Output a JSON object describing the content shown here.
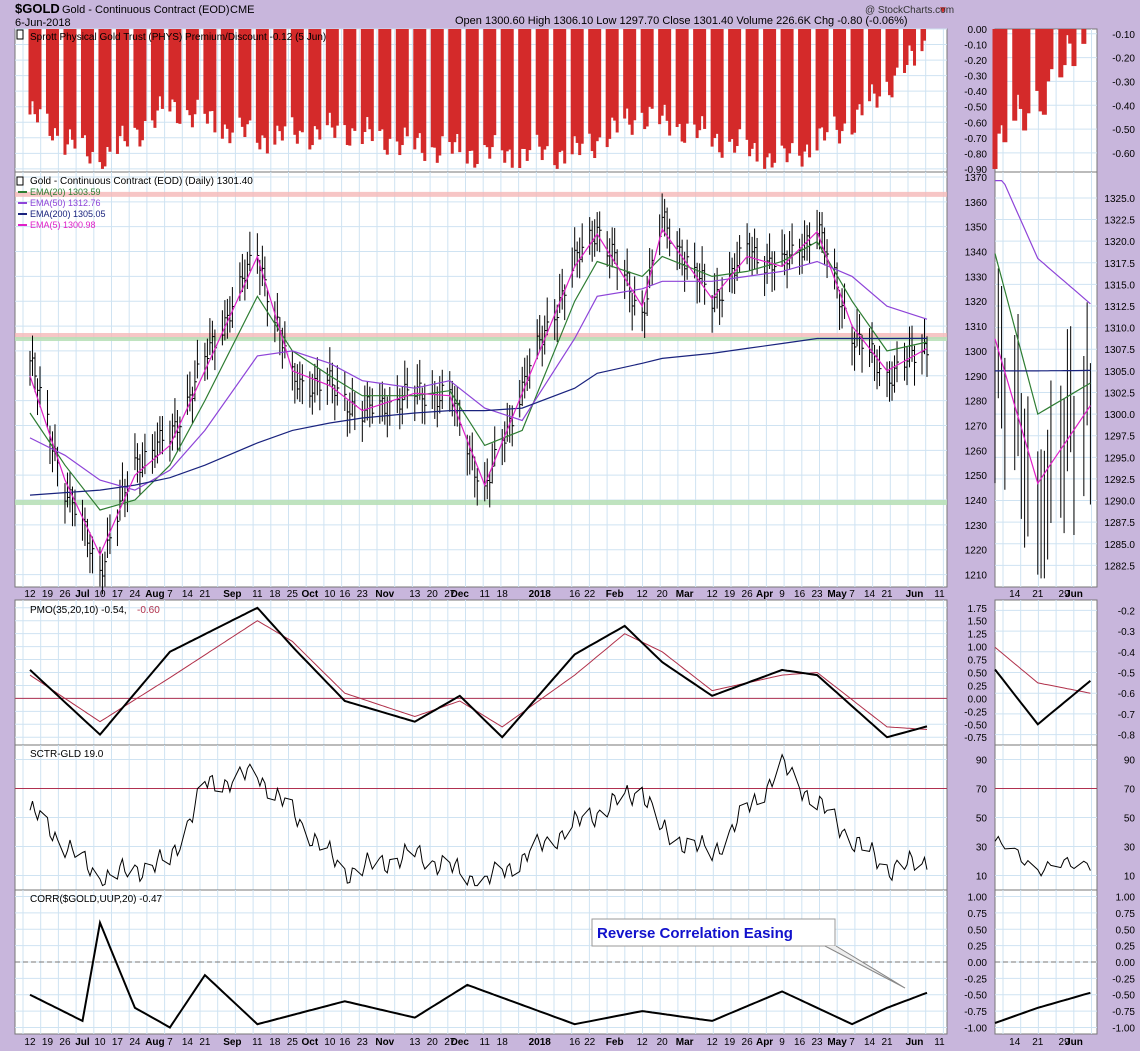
{
  "header": {
    "symbol": "$GOLD",
    "name": "Gold - Continuous Contract (EOD)",
    "exchange": "CME",
    "date": "6-Jun-2018",
    "quote": "Open 1300.60  High 1306.10  Low 1297.70  Close 1301.40  Volume 226.6K  Chg -0.80 (-0.06%)",
    "chg_arrow": "▼",
    "watermark": "@ StockCharts.com"
  },
  "colors": {
    "frame": "#c8b6dc",
    "panel_bg": "#ffffff",
    "grid": "#cfe3f2",
    "phys_bar": "#d42a2a",
    "price_bar": "#000000",
    "ema20": "#2e7d32",
    "ema50": "#8e44d8",
    "ema200": "#1a237e",
    "ema5": "#e020c8",
    "resistance_band": "#f5b8b8",
    "support_band": "#b8e0b8",
    "pmo_line": "#000000",
    "pmo_signal": "#b0304a",
    "zero_line": "#b03050",
    "sctr_line": "#000000",
    "corr_line": "#000000",
    "callout_text": "#1111cc"
  },
  "x_axis": {
    "main_labels": [
      "12",
      "19",
      "26",
      "Jul",
      "10",
      "17",
      "24",
      "Aug",
      "7",
      "14",
      "21",
      "Sep",
      "11",
      "18",
      "25",
      "Oct",
      "10",
      "16",
      "23",
      "Nov",
      "13",
      "20",
      "27",
      "Dec",
      "11",
      "18",
      "2018",
      "16",
      "22",
      "Feb",
      "12",
      "20",
      "Mar",
      "12",
      "19",
      "26",
      "Apr",
      "9",
      "16",
      "23",
      "May",
      "7",
      "14",
      "21",
      "Jun",
      "11"
    ],
    "zoom_labels": [
      "14",
      "21",
      "29",
      "Jun"
    ]
  },
  "panels": {
    "phys": {
      "legend_icon": "bar-icon",
      "label": "Sprott Physical Gold Trust (PHYS) Premium/Discount -0.12 (5 Jun)",
      "ticks": [
        "0.00",
        "-0.10",
        "-0.20",
        "-0.30",
        "-0.40",
        "-0.50",
        "-0.60",
        "-0.70",
        "-0.80",
        "-0.90"
      ],
      "zoom_ticks": [
        "-0.10",
        "-0.20",
        "-0.30",
        "-0.40",
        "-0.50",
        "-0.60"
      ]
    },
    "price": {
      "legend_icon": "ohlc-icon",
      "title": "Gold - Continuous Contract (EOD) (Daily) 1301.40",
      "legend": [
        {
          "label": "EMA(20) 1303.59",
          "color": "#2e7d32"
        },
        {
          "label": "EMA(50) 1312.76",
          "color": "#8e44d8"
        },
        {
          "label": "EMA(200) 1305.05",
          "color": "#1a237e"
        },
        {
          "label": "EMA(5) 1300.98",
          "color": "#e020c8"
        }
      ],
      "ticks": [
        "1370",
        "1360",
        "1350",
        "1340",
        "1330",
        "1320",
        "1310",
        "1300",
        "1290",
        "1280",
        "1270",
        "1260",
        "1250",
        "1240",
        "1230",
        "1220",
        "1210"
      ],
      "zoom_ticks": [
        "1325.0",
        "1322.5",
        "1320.0",
        "1317.5",
        "1315.0",
        "1312.5",
        "1310.0",
        "1307.5",
        "1305.0",
        "1302.5",
        "1300.0",
        "1297.5",
        "1295.0",
        "1292.5",
        "1290.0",
        "1287.5",
        "1285.0",
        "1282.5"
      ]
    },
    "pmo": {
      "label": "PMO(35,20,10) -0.54,",
      "signal_label": "-0.60",
      "ticks": [
        "1.75",
        "1.50",
        "1.25",
        "1.00",
        "0.75",
        "0.50",
        "0.25",
        "0.00",
        "-0.25",
        "-0.50",
        "-0.75"
      ],
      "zoom_ticks": [
        "-0.2",
        "-0.3",
        "-0.4",
        "-0.5",
        "-0.6",
        "-0.7",
        "-0.8"
      ]
    },
    "sctr": {
      "label": "SCTR-GLD 19.0",
      "ticks": [
        "90",
        "70",
        "50",
        "30",
        "10"
      ],
      "zoom_ticks": [
        "90",
        "70",
        "50",
        "30",
        "10"
      ]
    },
    "corr": {
      "label": "CORR($GOLD,UUP,20) -0.47",
      "ticks": [
        "1.00",
        "0.75",
        "0.50",
        "0.25",
        "0.00",
        "-0.25",
        "-0.50",
        "-0.75",
        "-1.00"
      ],
      "zoom_ticks": [
        "1.00",
        "0.75",
        "0.50",
        "0.25",
        "0.00",
        "-0.25",
        "-0.50",
        "-0.75",
        "-1.00"
      ],
      "annotation": "Reverse Correlation Easing"
    }
  },
  "chart_data": [
    {
      "type": "bar",
      "title": "Sprott Physical Gold Trust (PHYS) Premium/Discount",
      "ylim": [
        -0.9,
        0.0
      ],
      "x": [
        "2017-06-12",
        "2017-07-10",
        "2017-08-07",
        "2017-09-11",
        "2017-10-16",
        "2017-11-13",
        "2017-12-11",
        "2018-01-16",
        "2018-02-12",
        "2018-03-12",
        "2018-04-09",
        "2018-05-07",
        "2018-06-05"
      ],
      "values": [
        -0.55,
        -0.85,
        -0.5,
        -0.7,
        -0.65,
        -0.75,
        -0.8,
        -0.8,
        -0.55,
        -0.7,
        -0.85,
        -0.6,
        -0.12
      ]
    },
    {
      "type": "line",
      "title": "Gold - Continuous Contract (EOD) (Daily) 1301.40",
      "ylim": [
        1205,
        1372
      ],
      "x": [
        "2017-06-12",
        "2017-06-26",
        "2017-07-10",
        "2017-07-24",
        "2017-08-07",
        "2017-08-21",
        "2017-09-11",
        "2017-09-25",
        "2017-10-10",
        "2017-10-23",
        "2017-11-13",
        "2017-11-27",
        "2017-12-11",
        "2017-12-26",
        "2018-01-16",
        "2018-01-25",
        "2018-02-12",
        "2018-02-20",
        "2018-03-12",
        "2018-03-26",
        "2018-04-09",
        "2018-04-23",
        "2018-05-07",
        "2018-05-21",
        "2018-06-06"
      ],
      "series": [
        {
          "name": "Gold - Continuous Contract (EOD)",
          "values": [
            1296,
            1245,
            1212,
            1255,
            1265,
            1296,
            1340,
            1288,
            1286,
            1275,
            1283,
            1282,
            1243,
            1286,
            1335,
            1350,
            1315,
            1352,
            1320,
            1340,
            1334,
            1350,
            1307,
            1290,
            1301.4
          ]
        },
        {
          "name": "EMA(20)",
          "values": [
            1275,
            1254,
            1236,
            1240,
            1254,
            1280,
            1322,
            1300,
            1290,
            1282,
            1282,
            1284,
            1262,
            1268,
            1320,
            1336,
            1330,
            1338,
            1330,
            1332,
            1336,
            1344,
            1320,
            1300,
            1303.59
          ]
        },
        {
          "name": "EMA(50)",
          "values": [
            1265,
            1258,
            1248,
            1244,
            1252,
            1268,
            1298,
            1300,
            1295,
            1288,
            1285,
            1288,
            1277,
            1272,
            1305,
            1322,
            1325,
            1328,
            1328,
            1330,
            1332,
            1336,
            1330,
            1318,
            1312.76
          ]
        },
        {
          "name": "EMA(200)",
          "values": [
            1242,
            1243,
            1244,
            1246,
            1249,
            1254,
            1263,
            1268,
            1271,
            1273,
            1275,
            1276,
            1276,
            1277,
            1285,
            1291,
            1295,
            1297,
            1299,
            1301,
            1303,
            1305,
            1305,
            1305,
            1305.05
          ]
        },
        {
          "name": "EMA(5)",
          "values": [
            1290,
            1248,
            1218,
            1250,
            1262,
            1292,
            1338,
            1292,
            1286,
            1276,
            1283,
            1282,
            1246,
            1283,
            1334,
            1347,
            1318,
            1349,
            1321,
            1338,
            1334,
            1348,
            1310,
            1292,
            1300.98
          ]
        }
      ]
    },
    {
      "type": "line",
      "title": "PMO(35,20,10) -0.54, -0.60",
      "ylim": [
        -0.9,
        1.9
      ],
      "x": [
        "2017-06-12",
        "2017-07-10",
        "2017-08-07",
        "2017-09-11",
        "2017-09-25",
        "2017-10-16",
        "2017-11-13",
        "2017-12-01",
        "2017-12-18",
        "2018-01-16",
        "2018-02-05",
        "2018-02-20",
        "2018-03-12",
        "2018-04-09",
        "2018-04-23",
        "2018-05-21",
        "2018-06-06"
      ],
      "series": [
        {
          "name": "PMO",
          "values": [
            0.55,
            -0.7,
            0.9,
            1.75,
            1.0,
            -0.05,
            -0.45,
            0.05,
            -0.75,
            0.85,
            1.4,
            0.7,
            0.05,
            0.55,
            0.45,
            -0.75,
            -0.54
          ]
        },
        {
          "name": "Signal",
          "values": [
            0.45,
            -0.45,
            0.4,
            1.5,
            1.1,
            0.1,
            -0.35,
            -0.05,
            -0.55,
            0.45,
            1.25,
            0.9,
            0.15,
            0.45,
            0.5,
            -0.55,
            -0.6
          ]
        }
      ]
    },
    {
      "type": "line",
      "title": "SCTR-GLD 19.0",
      "ylim": [
        0,
        100
      ],
      "x": [
        "2017-06-12",
        "2017-07-10",
        "2017-08-07",
        "2017-08-21",
        "2017-09-11",
        "2017-10-16",
        "2017-11-13",
        "2017-12-11",
        "2018-01-16",
        "2018-02-12",
        "2018-02-20",
        "2018-03-12",
        "2018-04-09",
        "2018-04-23",
        "2018-05-07",
        "2018-05-21",
        "2018-06-06"
      ],
      "values": [
        55,
        8,
        20,
        72,
        80,
        12,
        25,
        5,
        45,
        70,
        40,
        25,
        85,
        60,
        35,
        15,
        19.0
      ]
    },
    {
      "type": "line",
      "title": "CORR($GOLD,UUP,20) -0.47",
      "ylim": [
        -1.1,
        1.1
      ],
      "x": [
        "2017-06-12",
        "2017-07-03",
        "2017-07-10",
        "2017-07-24",
        "2017-08-07",
        "2017-08-21",
        "2017-09-11",
        "2017-10-16",
        "2017-11-13",
        "2017-12-04",
        "2018-01-16",
        "2018-02-12",
        "2018-03-12",
        "2018-04-09",
        "2018-05-07",
        "2018-05-21",
        "2018-06-06"
      ],
      "values": [
        -0.5,
        -0.9,
        0.6,
        -0.7,
        -1.0,
        -0.2,
        -0.95,
        -0.6,
        -0.85,
        -0.35,
        -0.95,
        -0.75,
        -0.9,
        -0.45,
        -0.95,
        -0.7,
        -0.47
      ]
    }
  ]
}
